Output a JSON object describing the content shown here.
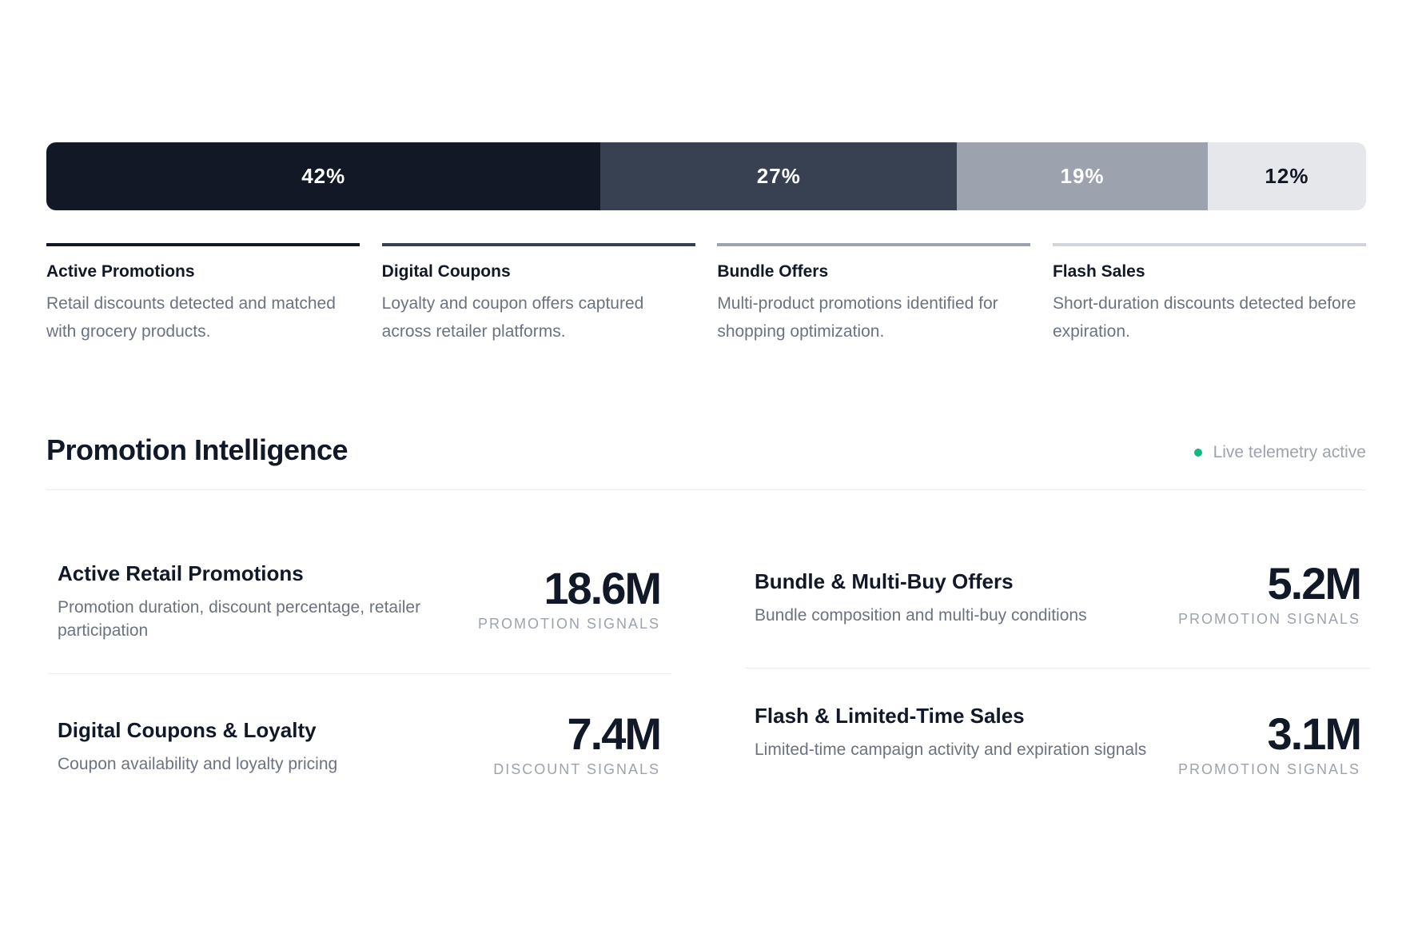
{
  "distribution": {
    "segments": [
      {
        "label": "42%",
        "share": 42,
        "color": "#121826",
        "text_color": "#ffffff"
      },
      {
        "label": "27%",
        "share": 27,
        "color": "#374151",
        "text_color": "#ffffff"
      },
      {
        "label": "19%",
        "share": 19,
        "color": "#9ca3af",
        "text_color": "#ffffff"
      },
      {
        "label": "12%",
        "share": 12,
        "color": "#e5e7eb",
        "text_color": "#121826"
      }
    ]
  },
  "legend": [
    {
      "title": "Active Promotions",
      "description": "Retail discounts detected and matched with grocery products.",
      "color": "#121826"
    },
    {
      "title": "Digital Coupons",
      "description": "Loyalty and coupon offers captured across retailer platforms.",
      "color": "#374151"
    },
    {
      "title": "Bundle Offers",
      "description": "Multi-product promotions identified for shopping optimization.",
      "color": "#9ca3af"
    },
    {
      "title": "Flash Sales",
      "description": "Short-duration discounts detected before expiration.",
      "color": "#d1d5db"
    }
  ],
  "section": {
    "title": "Promotion Intelligence",
    "status_text": "Live telemetry active",
    "status_color": "#10b981"
  },
  "metrics": [
    {
      "title": "Active Retail Promotions",
      "description": "Promotion duration, discount percentage, retailer participation",
      "value": "18.6M",
      "caption": "PROMOTION SIGNALS"
    },
    {
      "title": "Bundle & Multi-Buy Offers",
      "description": "Bundle composition and multi-buy conditions",
      "value": "5.2M",
      "caption": "PROMOTION SIGNALS"
    },
    {
      "title": "Digital Coupons & Loyalty",
      "description": "Coupon availability and loyalty pricing",
      "value": "7.4M",
      "caption": "DISCOUNT SIGNALS"
    },
    {
      "title": "Flash & Limited-Time Sales",
      "description": "Limited-time campaign activity and expiration signals",
      "value": "3.1M",
      "caption": "PROMOTION SIGNALS"
    }
  ]
}
